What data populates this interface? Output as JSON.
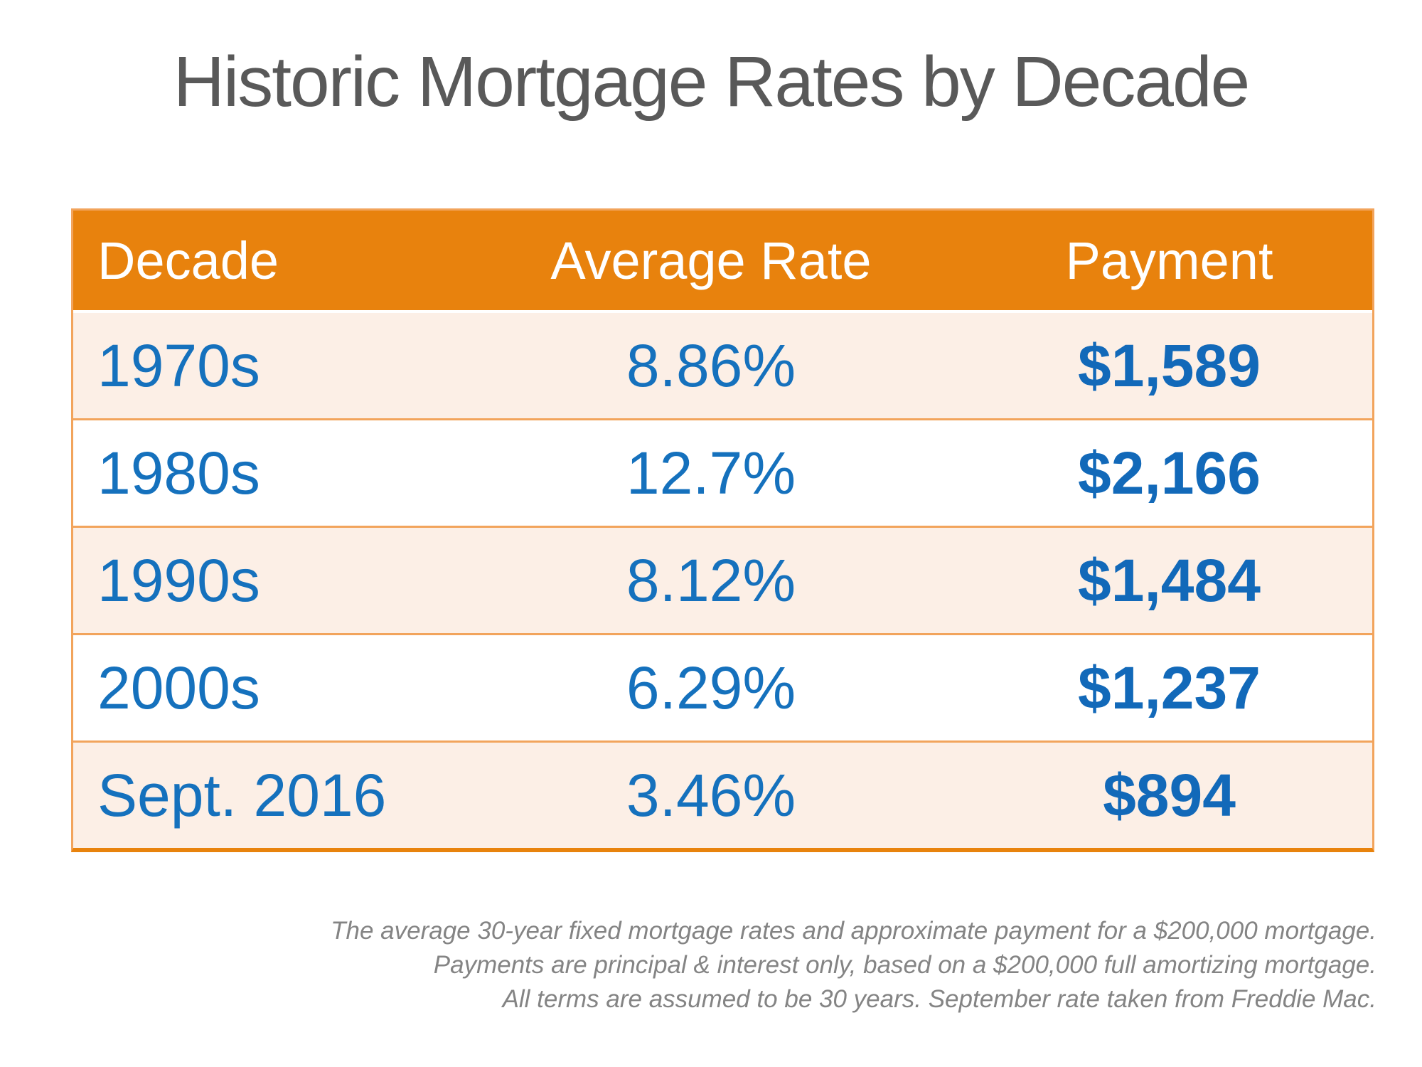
{
  "title": "Historic Mortgage Rates by Decade",
  "table": {
    "columns": [
      "Decade",
      "Average Rate",
      "Payment"
    ],
    "rows": [
      {
        "decade": "1970s",
        "rate": "8.86%",
        "payment": "$1,589"
      },
      {
        "decade": "1980s",
        "rate": "12.7%",
        "payment": "$2,166"
      },
      {
        "decade": "1990s",
        "rate": "8.12%",
        "payment": "$1,484"
      },
      {
        "decade": "2000s",
        "rate": "6.29%",
        "payment": "$1,237"
      },
      {
        "decade": "Sept. 2016",
        "rate": "3.46%",
        "payment": "$894"
      }
    ]
  },
  "footnote": {
    "line1": "The average 30-year fixed mortgage rates and approximate payment for a $200,000 mortgage.",
    "line2": "Payments are principal & interest only, based on a $200,000 full amortizing mortgage.",
    "line3": "All terms are assumed to be 30 years. September rate taken from Freddie Mac."
  },
  "colors": {
    "header_bg": "#E8820D",
    "row_alt_bg": "#FCEFE6",
    "row_bg": "#FFFFFF",
    "grid_border": "#F2A45C",
    "bottom_border": "#E8830D",
    "data_blue": "#1571BD",
    "payment_blue": "#1269B9",
    "title_gray": "#595959",
    "footnote_gray": "#848484"
  },
  "chart_data": {
    "type": "table",
    "title": "Historic Mortgage Rates by Decade",
    "columns": [
      "Decade",
      "Average Rate",
      "Payment"
    ],
    "rows": [
      [
        "1970s",
        "8.86%",
        "$1,589"
      ],
      [
        "1980s",
        "12.7%",
        "$2,166"
      ],
      [
        "1990s",
        "8.12%",
        "$1,484"
      ],
      [
        "2000s",
        "6.29%",
        "$1,237"
      ],
      [
        "Sept. 2016",
        "3.46%",
        "$894"
      ]
    ],
    "notes": [
      "The average 30-year fixed mortgage rates and approximate payment for a $200,000 mortgage.",
      "Payments are principal & interest only, based on a $200,000 full amortizing mortgage.",
      "All terms are assumed to be 30 years. September rate taken from Freddie Mac."
    ]
  }
}
